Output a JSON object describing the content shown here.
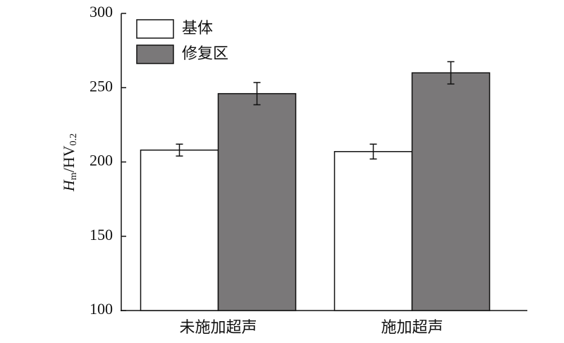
{
  "chart_data": {
    "type": "bar",
    "ylabel": {
      "symbol": "H",
      "symbol_sub": "m",
      "unit": "/HV",
      "unit_sub": "0.2"
    },
    "categories": [
      "未施加超声",
      "施加超声"
    ],
    "series": [
      {
        "name": "基体",
        "color": "#ffffff",
        "values": [
          208,
          207
        ],
        "errors": [
          4,
          5
        ]
      },
      {
        "name": "修复区",
        "color": "#7a7879",
        "values": [
          246,
          260
        ],
        "errors": [
          7.5,
          7.5
        ]
      }
    ],
    "ylim": [
      100,
      300
    ],
    "yticks": [
      100,
      150,
      200,
      250,
      300
    ],
    "grid": false
  }
}
